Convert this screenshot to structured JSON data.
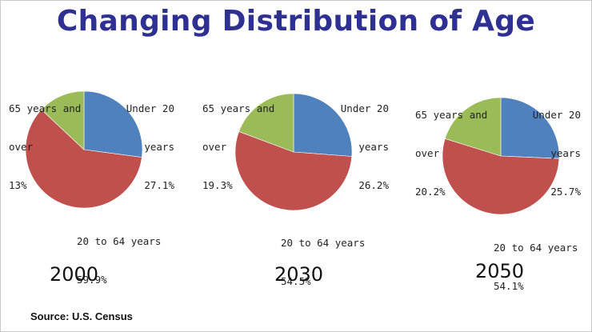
{
  "title": "Changing Distribution of Age",
  "source": "Source: U.S. Census",
  "colors": {
    "under20": "#4f81bd",
    "20to64": "#c0504d",
    "65over": "#9bbb59"
  },
  "chart_data": [
    {
      "type": "pie",
      "title": "2000",
      "slices": [
        {
          "name": "Under 20 years",
          "value": 27.1,
          "label_lines": [
            "Under 20",
            "years",
            "27.1%"
          ]
        },
        {
          "name": "20 to 64 years",
          "value": 59.9,
          "label_lines": [
            "20 to 64 years",
            "59.9%"
          ]
        },
        {
          "name": "65 years and over",
          "value": 13,
          "label_lines": [
            "65 years and",
            "over",
            "13%"
          ]
        }
      ]
    },
    {
      "type": "pie",
      "title": "2030",
      "slices": [
        {
          "name": "Under 20 years",
          "value": 26.2,
          "label_lines": [
            "Under 20",
            "years",
            "26.2%"
          ]
        },
        {
          "name": "20 to 64 years",
          "value": 54.5,
          "label_lines": [
            "20 to 64 years",
            "54.5%"
          ]
        },
        {
          "name": "65 years and over",
          "value": 19.3,
          "label_lines": [
            "65 years and",
            "over",
            "19.3%"
          ]
        }
      ]
    },
    {
      "type": "pie",
      "title": "2050",
      "slices": [
        {
          "name": "Under 20 years",
          "value": 25.7,
          "label_lines": [
            "Under 20",
            "years",
            "25.7%"
          ]
        },
        {
          "name": "20 to 64 years",
          "value": 54.1,
          "label_lines": [
            "20 to 64 years",
            "54.1%"
          ]
        },
        {
          "name": "65 years and over",
          "value": 20.2,
          "label_lines": [
            "65 years and",
            "over",
            "20.2%"
          ]
        }
      ]
    }
  ]
}
